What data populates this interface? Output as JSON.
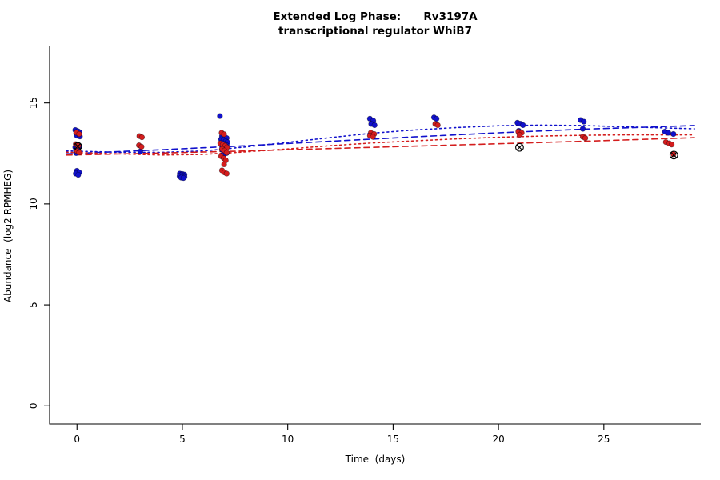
{
  "figure": {
    "title_line1": "Extended Log Phase:      Rv3197A",
    "title_line2": "transcriptional regulator WhiB7",
    "xlabel": "Time  (days)",
    "ylabel": "Abundance  (log2 RPMHEG)"
  },
  "chart_data": {
    "type": "scatter",
    "title": "Extended Log Phase: Rv3197A",
    "subtitle": "transcriptional regulator WhiB7",
    "xlabel": "Time (days)",
    "ylabel": "Abundance (log2 RPMHEG)",
    "xlim": [
      -1.3,
      29.6
    ],
    "ylim": [
      -0.9,
      17.8
    ],
    "x_ticks": [
      0,
      5,
      10,
      15,
      20,
      25
    ],
    "y_ticks": [
      0,
      5,
      10,
      15
    ],
    "grid": false,
    "legend": "none",
    "colors": {
      "blue": "#1111CC",
      "red": "#D41D1D",
      "flag": "#000000"
    },
    "series": [
      {
        "name": "blue-points",
        "color": "#1111CC",
        "points": [
          [
            -0.08,
            13.66
          ],
          [
            0.04,
            13.6
          ],
          [
            0.12,
            13.55
          ],
          [
            -0.04,
            13.5
          ],
          [
            0.08,
            13.44
          ],
          [
            0.0,
            13.38
          ],
          [
            0.14,
            13.34
          ],
          [
            0.0,
            12.93
          ],
          [
            0.1,
            12.86
          ],
          [
            -0.08,
            12.8
          ],
          [
            0.04,
            12.7
          ],
          [
            0.0,
            12.6
          ],
          [
            -0.04,
            12.52
          ],
          [
            0.0,
            11.64
          ],
          [
            0.1,
            11.56
          ],
          [
            -0.06,
            11.5
          ],
          [
            0.06,
            11.44
          ],
          [
            3.0,
            12.6
          ],
          [
            4.88,
            11.5
          ],
          [
            5.0,
            11.48
          ],
          [
            5.1,
            11.45
          ],
          [
            4.93,
            11.42
          ],
          [
            5.04,
            11.4
          ],
          [
            4.87,
            11.37
          ],
          [
            4.98,
            11.35
          ],
          [
            5.1,
            11.33
          ],
          [
            4.94,
            11.3
          ],
          [
            5.05,
            11.28
          ],
          [
            6.78,
            14.35
          ],
          [
            6.88,
            13.36
          ],
          [
            7.0,
            13.3
          ],
          [
            7.1,
            13.26
          ],
          [
            6.84,
            13.2
          ],
          [
            6.95,
            13.15
          ],
          [
            7.06,
            13.1
          ],
          [
            7.14,
            13.05
          ],
          [
            6.9,
            13.0
          ],
          [
            7.0,
            12.95
          ],
          [
            7.1,
            12.9
          ],
          [
            6.94,
            12.83
          ],
          [
            7.04,
            12.76
          ],
          [
            6.88,
            12.68
          ],
          [
            7.0,
            12.6
          ],
          [
            7.1,
            12.52
          ],
          [
            6.95,
            12.44
          ],
          [
            13.9,
            14.22
          ],
          [
            14.06,
            14.12
          ],
          [
            13.96,
            13.96
          ],
          [
            14.12,
            13.9
          ],
          [
            16.94,
            14.28
          ],
          [
            17.06,
            14.22
          ],
          [
            20.9,
            14.02
          ],
          [
            21.04,
            13.97
          ],
          [
            21.16,
            13.9
          ],
          [
            20.96,
            13.62
          ],
          [
            23.9,
            14.15
          ],
          [
            24.05,
            14.07
          ],
          [
            24.0,
            13.72
          ],
          [
            27.9,
            13.58
          ],
          [
            28.06,
            13.52
          ],
          [
            28.3,
            13.46
          ]
        ]
      },
      {
        "name": "red-points",
        "color": "#D41D1D",
        "points": [
          [
            -0.02,
            13.53
          ],
          [
            0.1,
            13.46
          ],
          [
            -0.06,
            12.96
          ],
          [
            0.06,
            12.88
          ],
          [
            0.0,
            12.62
          ],
          [
            0.1,
            12.55
          ],
          [
            2.96,
            13.36
          ],
          [
            3.08,
            13.3
          ],
          [
            2.94,
            12.9
          ],
          [
            3.06,
            12.83
          ],
          [
            6.86,
            13.52
          ],
          [
            6.98,
            13.45
          ],
          [
            6.8,
            13.0
          ],
          [
            6.92,
            12.94
          ],
          [
            7.04,
            12.88
          ],
          [
            7.12,
            12.8
          ],
          [
            6.88,
            12.72
          ],
          [
            7.0,
            12.64
          ],
          [
            7.1,
            12.54
          ],
          [
            6.84,
            12.36
          ],
          [
            6.96,
            12.26
          ],
          [
            7.06,
            12.16
          ],
          [
            6.98,
            11.96
          ],
          [
            6.88,
            11.66
          ],
          [
            7.0,
            11.56
          ],
          [
            7.1,
            11.5
          ],
          [
            13.94,
            13.52
          ],
          [
            14.1,
            13.46
          ],
          [
            13.9,
            13.38
          ],
          [
            14.04,
            13.32
          ],
          [
            17.0,
            13.96
          ],
          [
            17.12,
            13.9
          ],
          [
            20.94,
            13.58
          ],
          [
            21.1,
            13.52
          ],
          [
            21.0,
            13.42
          ],
          [
            24.0,
            13.32
          ],
          [
            24.12,
            13.26
          ],
          [
            27.94,
            13.06
          ],
          [
            28.1,
            13.0
          ],
          [
            28.22,
            12.94
          ],
          [
            28.3,
            12.46
          ]
        ]
      }
    ],
    "flagged_points": {
      "name": "crossed-outliers",
      "symbol": "circle-cross",
      "color": "#000000",
      "points": [
        [
          0.04,
          12.85
        ],
        [
          21.0,
          12.8
        ],
        [
          28.32,
          12.42
        ]
      ]
    },
    "curves": [
      {
        "name": "blue-dotted-fit",
        "color": "#1111CC",
        "style": "dotted",
        "points": [
          [
            -0.5,
            12.62
          ],
          [
            2,
            12.56
          ],
          [
            4,
            12.55
          ],
          [
            6,
            12.62
          ],
          [
            8,
            12.82
          ],
          [
            10,
            13.05
          ],
          [
            12,
            13.28
          ],
          [
            14,
            13.5
          ],
          [
            16,
            13.66
          ],
          [
            18,
            13.78
          ],
          [
            20,
            13.87
          ],
          [
            22,
            13.9
          ],
          [
            24,
            13.88
          ],
          [
            26,
            13.82
          ],
          [
            28,
            13.76
          ],
          [
            29.3,
            13.72
          ]
        ]
      },
      {
        "name": "blue-dashed-fit",
        "color": "#1111CC",
        "style": "dashed",
        "points": [
          [
            -0.5,
            12.48
          ],
          [
            4,
            12.68
          ],
          [
            8,
            12.88
          ],
          [
            12,
            13.1
          ],
          [
            16,
            13.32
          ],
          [
            20,
            13.52
          ],
          [
            24,
            13.7
          ],
          [
            27,
            13.8
          ],
          [
            29.3,
            13.88
          ]
        ]
      },
      {
        "name": "red-dotted-fit",
        "color": "#D41D1D",
        "style": "dotted",
        "points": [
          [
            -0.5,
            12.56
          ],
          [
            2,
            12.48
          ],
          [
            4,
            12.42
          ],
          [
            6,
            12.45
          ],
          [
            8,
            12.58
          ],
          [
            10,
            12.72
          ],
          [
            12,
            12.88
          ],
          [
            14,
            13.02
          ],
          [
            16,
            13.12
          ],
          [
            18,
            13.22
          ],
          [
            20,
            13.3
          ],
          [
            22,
            13.36
          ],
          [
            24,
            13.4
          ],
          [
            26,
            13.42
          ],
          [
            29.3,
            13.42
          ]
        ]
      },
      {
        "name": "red-dashed-fit",
        "color": "#D41D1D",
        "style": "dashed",
        "points": [
          [
            -0.5,
            12.42
          ],
          [
            4,
            12.52
          ],
          [
            8,
            12.62
          ],
          [
            12,
            12.74
          ],
          [
            16,
            12.86
          ],
          [
            20,
            12.98
          ],
          [
            24,
            13.1
          ],
          [
            27,
            13.2
          ],
          [
            29.3,
            13.28
          ]
        ]
      }
    ]
  }
}
